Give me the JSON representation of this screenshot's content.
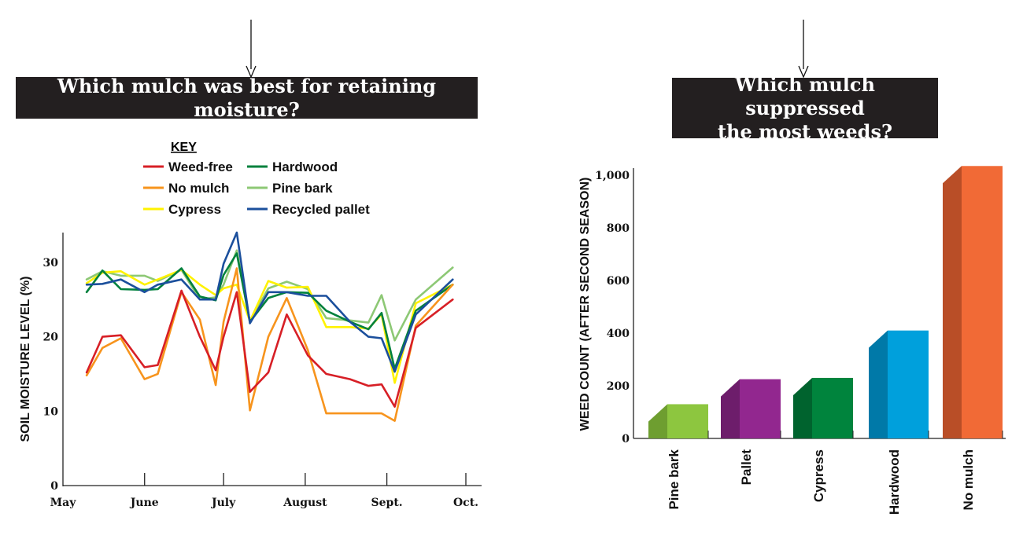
{
  "chart_data": [
    {
      "type": "line",
      "title": "Which mulch was best for retaining moisture?",
      "ylabel": "SOIL MOISTURE LEVEL (%)",
      "xlabel": "",
      "ylim": [
        0,
        34
      ],
      "yticks": [
        0,
        10,
        20,
        30
      ],
      "x_tick_labels": [
        "May",
        "June",
        "July",
        "August",
        "Sept.",
        "Oct."
      ],
      "x_tick_positions": [
        1,
        32,
        62,
        93,
        124,
        154
      ],
      "legend_title": "KEY",
      "x": [
        10,
        16,
        23,
        32,
        37,
        46,
        53,
        59,
        62,
        67,
        72,
        79,
        86,
        94,
        101,
        110,
        117,
        122,
        127,
        135,
        149
      ],
      "series": [
        {
          "name": "Weed-free",
          "color": "#d71f26",
          "values": [
            15.2,
            20.0,
            20.2,
            15.9,
            16.2,
            26.2,
            20.0,
            15.5,
            20.0,
            26.0,
            12.6,
            15.2,
            23.0,
            17.5,
            15.0,
            14.3,
            13.4,
            13.6,
            10.6,
            21.2,
            25.0
          ]
        },
        {
          "name": "No mulch",
          "color": "#f7941d",
          "values": [
            14.8,
            18.5,
            19.8,
            14.3,
            15.0,
            26.0,
            22.3,
            13.5,
            22.0,
            29.2,
            10.1,
            20.0,
            25.2,
            18.2,
            9.7,
            9.7,
            9.7,
            9.7,
            8.7,
            21.5,
            27.0
          ]
        },
        {
          "name": "Cypress",
          "color": "#fff200",
          "values": [
            27.2,
            28.6,
            28.8,
            27.0,
            27.7,
            29.0,
            27.0,
            25.6,
            26.5,
            27.0,
            22.1,
            27.5,
            26.6,
            26.7,
            21.3,
            21.3,
            21.1,
            23.0,
            13.8,
            24.5,
            27.0
          ]
        },
        {
          "name": "Hardwood",
          "color": "#00813d",
          "values": [
            26.0,
            28.9,
            26.4,
            26.3,
            26.4,
            29.2,
            25.4,
            24.9,
            28.3,
            31.2,
            22.0,
            25.2,
            26.0,
            25.9,
            23.5,
            22.0,
            21.0,
            23.2,
            15.7,
            23.5,
            27.0
          ]
        },
        {
          "name": "Pine bark",
          "color": "#8dc875",
          "values": [
            27.7,
            28.8,
            28.2,
            28.2,
            27.5,
            29.0,
            25.0,
            25.3,
            27.0,
            31.6,
            22.0,
            26.5,
            27.4,
            26.4,
            22.5,
            22.2,
            21.9,
            25.6,
            19.5,
            25.0,
            29.3
          ]
        },
        {
          "name": "Recycled pallet",
          "color": "#1b4f9c",
          "values": [
            27.0,
            27.1,
            27.7,
            26.0,
            27.0,
            27.7,
            25.0,
            25.0,
            29.8,
            34.0,
            21.8,
            26.0,
            26.0,
            25.5,
            25.5,
            22.0,
            20.0,
            19.8,
            15.3,
            23.0,
            27.7
          ]
        }
      ]
    },
    {
      "type": "bar",
      "title": "Which mulch suppressed the most weeds?",
      "title_lines": [
        "Which mulch suppressed",
        "the most weeds?"
      ],
      "ylabel": "WEED COUNT (AFTER SECOND SEASON)",
      "xlabel": "",
      "ylim": [
        0,
        1000
      ],
      "yticks": [
        0,
        200,
        400,
        600,
        800,
        1000
      ],
      "ytick_labels": [
        "0",
        "200",
        "400",
        "600",
        "800",
        "1,000"
      ],
      "categories": [
        "Pine bark",
        "Pallet",
        "Cypress",
        "Hardwood",
        "No mulch"
      ],
      "values": [
        130,
        225,
        230,
        410,
        1035
      ],
      "colors": [
        "#8dc63f",
        "#92278f",
        "#00843d",
        "#00a0dc",
        "#f16a36"
      ],
      "side_colors": [
        "#6e9e30",
        "#6d1d6b",
        "#00632e",
        "#0079a8",
        "#b94e27"
      ]
    }
  ]
}
